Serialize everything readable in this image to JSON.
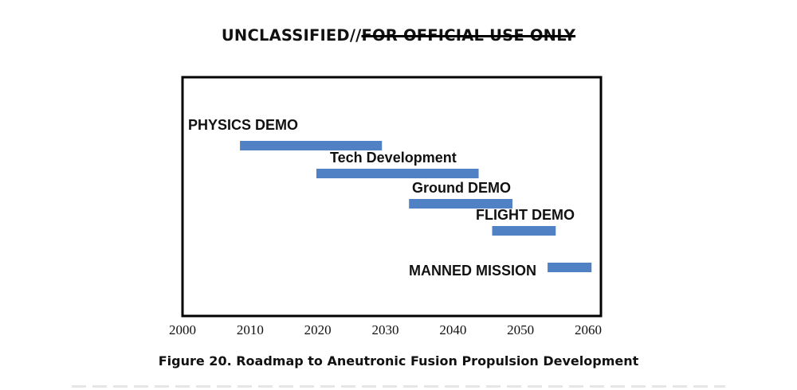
{
  "marking": {
    "prefix": "UNCLASSIFIED//",
    "struck": "FOR OFFICIAL USE ONLY"
  },
  "caption": "Figure 20.  Roadmap to Aneutronic Fusion Propulsion Development",
  "chart_data": {
    "type": "bar",
    "orientation": "horizontal-timeline",
    "title": "",
    "xlabel": "",
    "ylabel": "",
    "xlim": [
      2000,
      2065
    ],
    "xticks": [
      2000,
      2010,
      2020,
      2030,
      2040,
      2050,
      2060
    ],
    "grid": false,
    "bar_color": "#4f81c4",
    "tasks": [
      {
        "label": "PHYSICS DEMO",
        "start": 2008.5,
        "end": 2029.5
      },
      {
        "label": "Tech Development",
        "start": 2019.8,
        "end": 2043.8
      },
      {
        "label": "Ground  DEMO",
        "start": 2033.5,
        "end": 2048.8
      },
      {
        "label": "FLIGHT DEMO",
        "start": 2045.8,
        "end": 2055.2
      },
      {
        "label": "MANNED MISSION",
        "start": 2054.0,
        "end": 2060.5
      }
    ]
  }
}
